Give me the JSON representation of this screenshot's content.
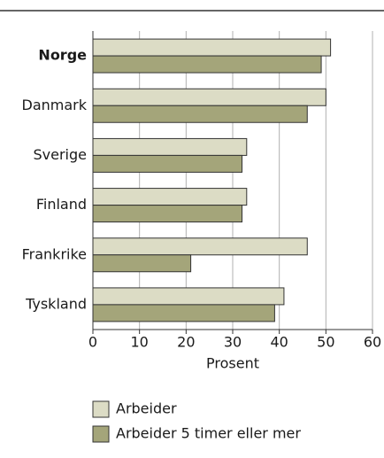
{
  "chart_data": {
    "type": "barh",
    "categories": [
      "Norge",
      "Danmark",
      "Sverige",
      "Finland",
      "Frankrike",
      "Tyskland"
    ],
    "series": [
      {
        "name": "Arbeider",
        "color": "#dcdcc5",
        "values": [
          51,
          50,
          33,
          33,
          46,
          41
        ]
      },
      {
        "name": "Arbeider 5 timer eller mer",
        "color": "#a4a57a",
        "values": [
          49,
          46,
          32,
          32,
          21,
          39
        ]
      }
    ],
    "xlabel": "Prosent",
    "xlim": [
      0,
      60
    ],
    "xticks": [
      0,
      10,
      20,
      30,
      40,
      50,
      60
    ],
    "grid": true
  }
}
